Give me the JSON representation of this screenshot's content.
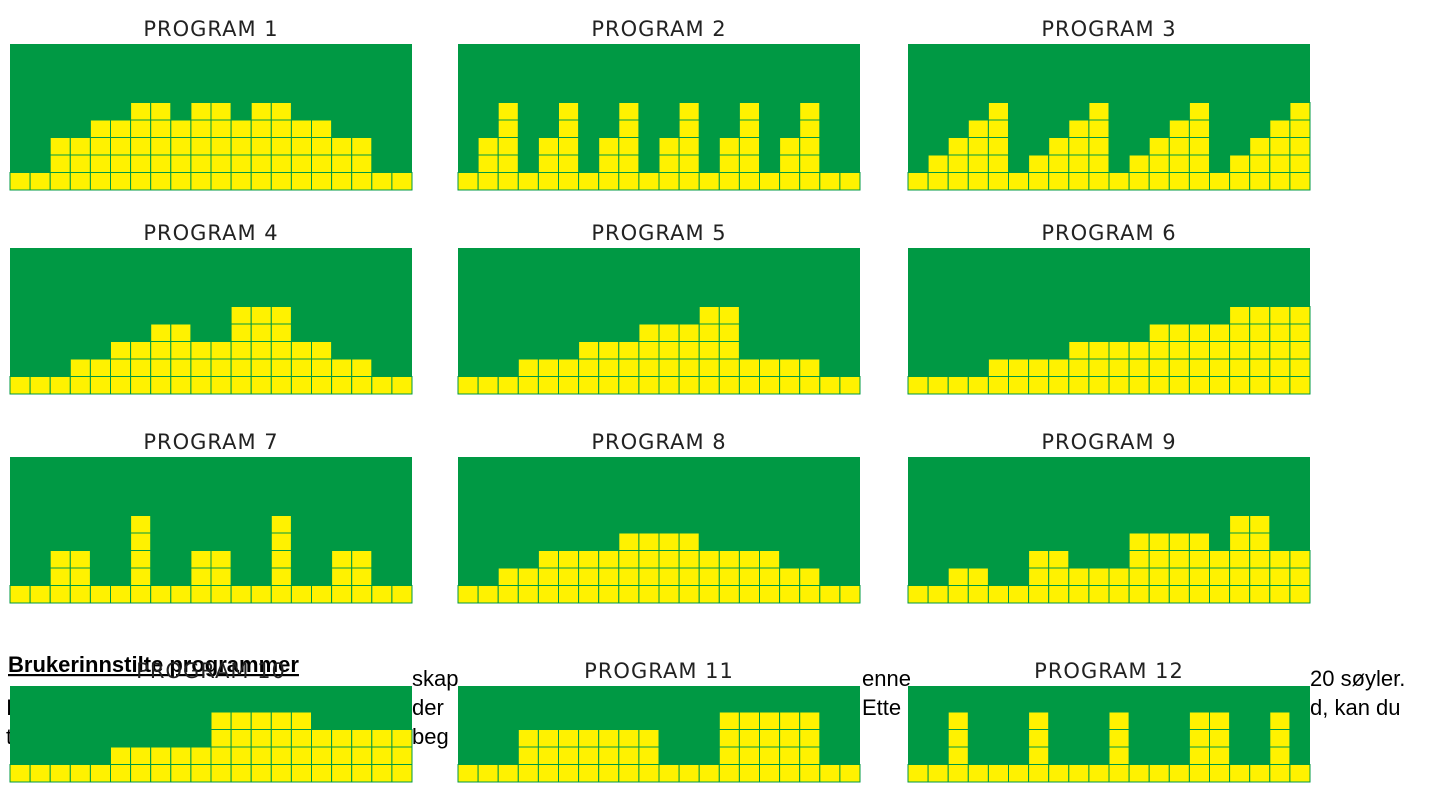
{
  "heading": "Brukerinnstilte programmer",
  "paragraph": {
    "lines": [
      [
        "skap",
        "enne",
        "20 søyler."
      ],
      [
        "I",
        "der",
        "Ette",
        "d, kan du"
      ],
      [
        "t",
        "beg"
      ]
    ]
  },
  "programs": [
    {
      "label": "PROGRAM 1",
      "levels": [
        1,
        1,
        3,
        3,
        4,
        4,
        5,
        5,
        4,
        5,
        5,
        4,
        5,
        5,
        4,
        4,
        3,
        3,
        1,
        1
      ]
    },
    {
      "label": "PROGRAM 2",
      "levels": [
        1,
        3,
        5,
        1,
        3,
        5,
        1,
        3,
        5,
        1,
        3,
        5,
        1,
        3,
        5,
        1,
        3,
        5,
        1,
        1
      ]
    },
    {
      "label": "PROGRAM 3",
      "levels": [
        1,
        2,
        3,
        4,
        5,
        1,
        2,
        3,
        4,
        5,
        1,
        2,
        3,
        4,
        5,
        1,
        2,
        3,
        4,
        5
      ]
    },
    {
      "label": "PROGRAM 4",
      "levels": [
        1,
        1,
        1,
        2,
        2,
        3,
        3,
        4,
        4,
        3,
        3,
        5,
        5,
        5,
        3,
        3,
        2,
        2,
        1,
        1
      ]
    },
    {
      "label": "PROGRAM 5",
      "levels": [
        1,
        1,
        1,
        2,
        2,
        2,
        3,
        3,
        3,
        4,
        4,
        4,
        5,
        5,
        2,
        2,
        2,
        2,
        1,
        1
      ]
    },
    {
      "label": "PROGRAM 6",
      "levels": [
        1,
        1,
        1,
        1,
        2,
        2,
        2,
        2,
        3,
        3,
        3,
        3,
        4,
        4,
        4,
        4,
        5,
        5,
        5,
        5
      ]
    },
    {
      "label": "PROGRAM 7",
      "levels": [
        1,
        1,
        3,
        3,
        1,
        1,
        5,
        1,
        1,
        3,
        3,
        1,
        1,
        5,
        1,
        1,
        3,
        3,
        1,
        1
      ]
    },
    {
      "label": "PROGRAM 8",
      "levels": [
        1,
        1,
        2,
        2,
        3,
        3,
        3,
        3,
        4,
        4,
        4,
        4,
        3,
        3,
        3,
        3,
        2,
        2,
        1,
        1
      ]
    },
    {
      "label": "PROGRAM 9",
      "levels": [
        1,
        1,
        2,
        2,
        1,
        1,
        3,
        3,
        2,
        2,
        2,
        4,
        4,
        4,
        4,
        3,
        5,
        5,
        3,
        3
      ]
    },
    {
      "label": "PROGRAM 10",
      "levels": [
        1,
        1,
        1,
        1,
        1,
        2,
        2,
        2,
        2,
        2,
        4,
        4,
        4,
        4,
        4,
        3,
        3,
        3,
        3,
        3
      ]
    },
    {
      "label": "PROGRAM 11",
      "levels": [
        1,
        1,
        1,
        3,
        3,
        3,
        3,
        3,
        3,
        3,
        1,
        1,
        1,
        4,
        4,
        4,
        4,
        4,
        1,
        1
      ]
    },
    {
      "label": "PROGRAM 12",
      "levels": [
        1,
        1,
        4,
        1,
        1,
        1,
        4,
        1,
        1,
        1,
        4,
        1,
        1,
        1,
        4,
        4,
        1,
        1,
        4,
        1
      ]
    }
  ]
}
